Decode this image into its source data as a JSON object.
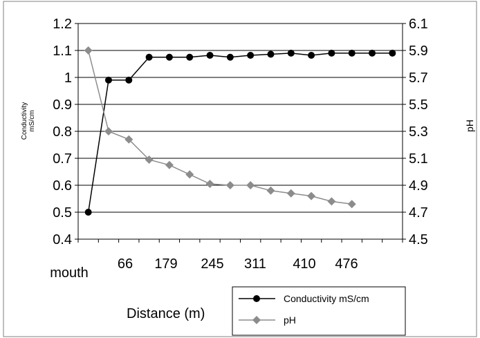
{
  "chart_data": {
    "type": "line",
    "title": "",
    "xlabel": "Distance (m)",
    "ylabel": "Conductivity mS/cm",
    "ylabel_lines": [
      "Conductivity",
      "mS/cm"
    ],
    "y2label": "pH",
    "x_tick_labels": [
      "mouth",
      "66",
      "179",
      "245",
      "311",
      "410",
      "476"
    ],
    "point_count": 16,
    "ylim": [
      0.4,
      1.2
    ],
    "y_ticks": [
      "0.4",
      "0.5",
      "0.6",
      "0.7",
      "0.8",
      "0.9",
      "1",
      "1.1",
      "1.2"
    ],
    "y2lim": [
      4.5,
      6.1
    ],
    "y2_ticks": [
      "4.5",
      "4.7",
      "4.9",
      "5.1",
      "5.3",
      "5.5",
      "5.7",
      "5.9",
      "6.1"
    ],
    "grid": true,
    "legend_position": "bottom-right",
    "series": [
      {
        "name": "Conductivity mS/cm",
        "axis": "left",
        "color": "#000000",
        "marker": "circle",
        "values": [
          0.5,
          0.99,
          0.99,
          1.075,
          1.075,
          1.075,
          1.082,
          1.075,
          1.082,
          1.086,
          1.09,
          1.082,
          1.09,
          1.09,
          1.09,
          1.09
        ]
      },
      {
        "name": "pH",
        "axis": "right",
        "color": "#8c8c8c",
        "marker": "diamond",
        "values": [
          5.9,
          5.3,
          5.24,
          5.09,
          5.05,
          4.98,
          4.91,
          4.9,
          4.9,
          4.86,
          4.84,
          4.82,
          4.78,
          4.76
        ]
      }
    ]
  }
}
